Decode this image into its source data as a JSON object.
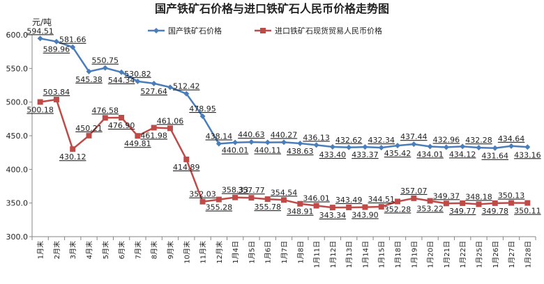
{
  "chart_data": {
    "type": "line",
    "title": "国产铁矿石价格与进口铁矿石人民币价格走势图",
    "ylabel": "元/吨",
    "ylim": [
      300,
      600
    ],
    "yticks": [
      "300.0",
      "350.0",
      "400.0",
      "450.0",
      "500.0",
      "550.0",
      "600.0"
    ],
    "grid": false,
    "legend_position": "top",
    "categories": [
      "1月末",
      "2月末",
      "3月末",
      "4月末",
      "5月末",
      "6月末",
      "7月末",
      "8月末",
      "9月末",
      "10月末",
      "11月末",
      "12月末",
      "1月4日",
      "1月5日",
      "1月6日",
      "1月7日",
      "1月8日",
      "1月11日",
      "1月12日",
      "1月13日",
      "1月14日",
      "1月15日",
      "1月18日",
      "1月19日",
      "1月20日",
      "1月21日",
      "1月22日",
      "1月25日",
      "1月26日",
      "1月27日",
      "1月28日"
    ],
    "series": [
      {
        "name": "国产铁矿石价格",
        "color": "#4a7ebb",
        "marker": "diamond",
        "values": [
          594.51,
          589.96,
          581.66,
          545.38,
          550.75,
          544.34,
          530.82,
          527.64,
          522.0,
          512.42,
          478.95,
          438.14,
          440.01,
          440.63,
          440.11,
          440.27,
          438.63,
          436.13,
          433.4,
          432.62,
          433.37,
          432.34,
          435.42,
          437.44,
          434.01,
          432.96,
          434.12,
          432.28,
          431.64,
          434.64,
          433.16
        ],
        "labels": [
          "594.51",
          "589.96",
          "581.66",
          "545.38",
          "550.75",
          "544.34",
          "530.82",
          "527.64",
          "",
          "512.42",
          "478.95",
          "438.14",
          "440.01",
          "440.63",
          "440.11",
          "440.27",
          "438.63",
          "436.13",
          "433.40",
          "432.62",
          "433.37",
          "432.34",
          "435.42",
          "437.44",
          "434.01",
          "432.96",
          "434.12",
          "432.28",
          "431.64",
          "434.64",
          "433.16"
        ]
      },
      {
        "name": "进口铁矿石现货贸易人民币价格",
        "color": "#be4b48",
        "marker": "square",
        "values": [
          500.18,
          503.84,
          430.12,
          450.21,
          476.58,
          476.9,
          449.81,
          461.98,
          461.06,
          414.89,
          352.03,
          355.28,
          358.33,
          357.77,
          355.78,
          354.54,
          348.91,
          346.01,
          343.34,
          343.49,
          343.9,
          344.51,
          352.28,
          357.07,
          353.22,
          349.37,
          349.77,
          348.18,
          349.78,
          350.13,
          350.11
        ],
        "labels": [
          "500.18",
          "503.84",
          "430.12",
          "450.21",
          "476.58",
          "476.90",
          "449.81",
          "461.98",
          "461.06",
          "414.89",
          "352.03",
          "355.28",
          "358.33",
          "357.77",
          "355.78",
          "354.54",
          "348.91",
          "346.01",
          "343.34",
          "343.49",
          "343.90",
          "344.51",
          "352.28",
          "357.07",
          "353.22",
          "349.37",
          "349.77",
          "348.18",
          "349.78",
          "350.13",
          "350.11"
        ]
      }
    ]
  }
}
